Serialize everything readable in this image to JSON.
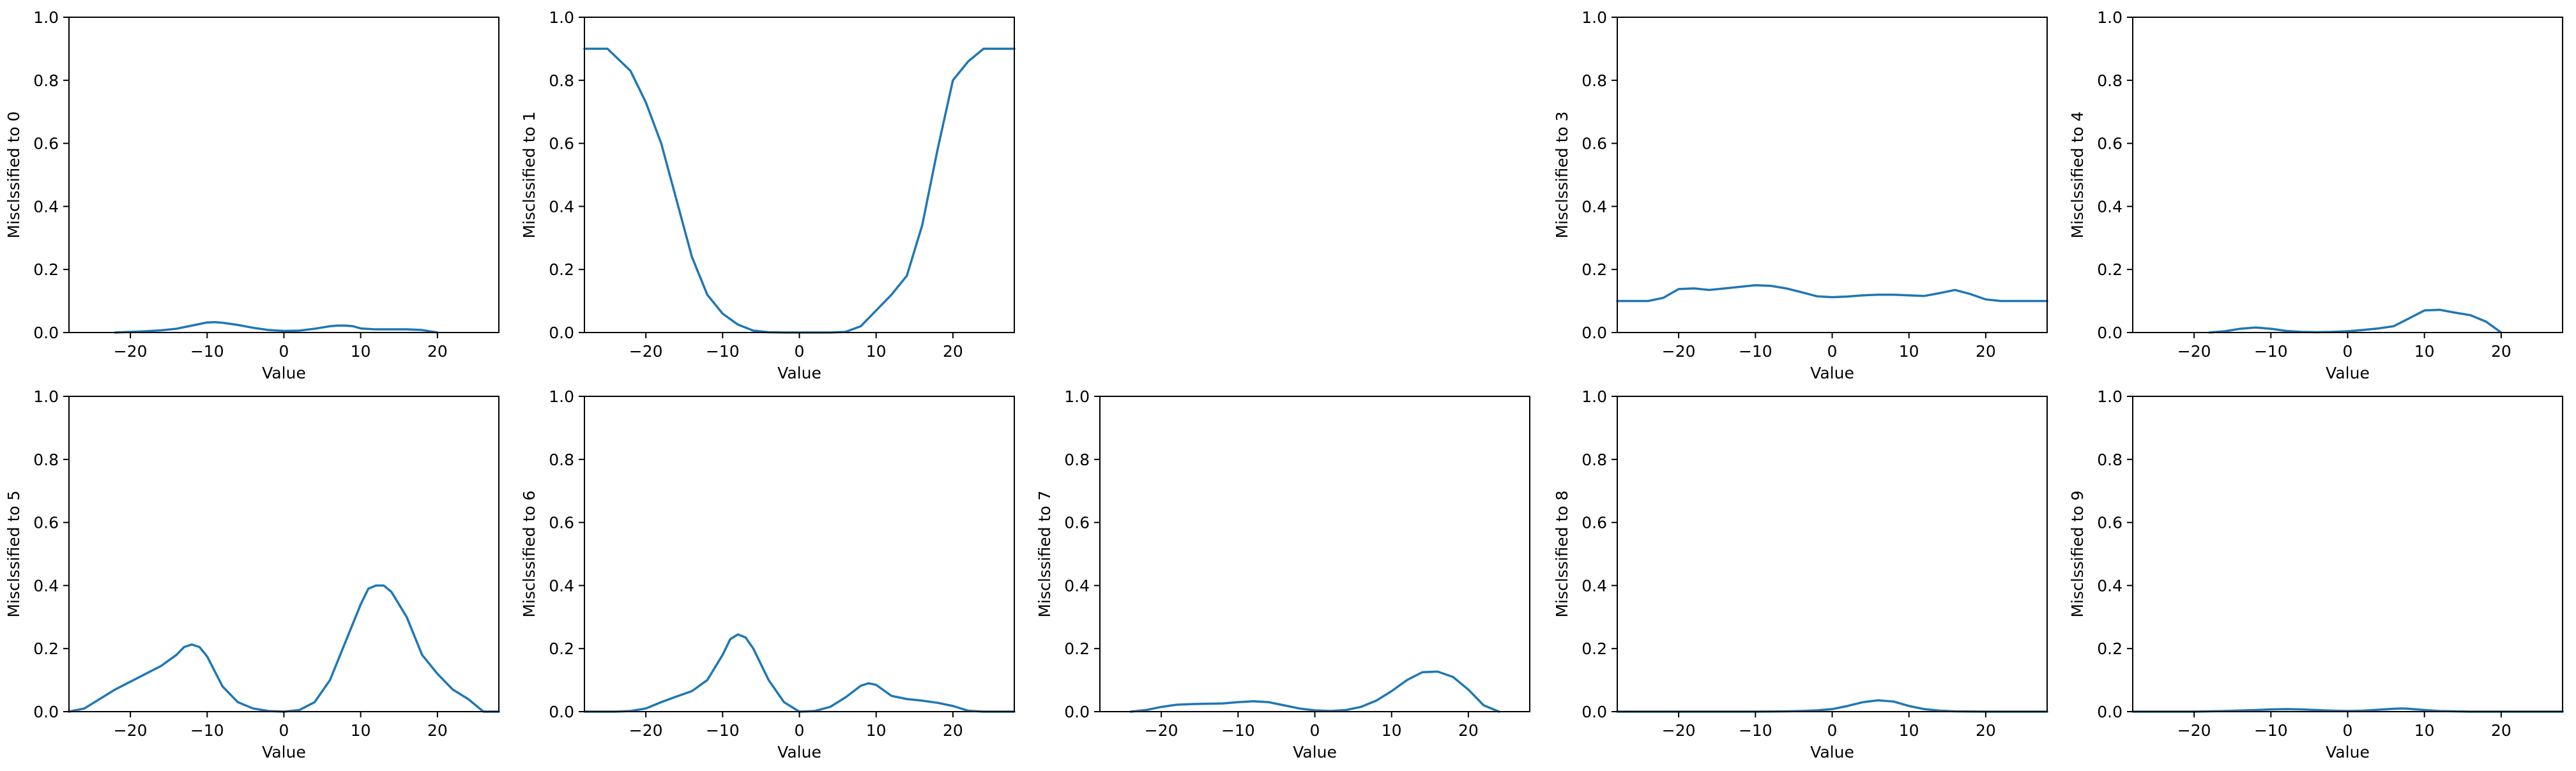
{
  "figure": {
    "line_color": "#1f77b4"
  },
  "chart_data": [
    {
      "type": "line",
      "panel_index": 0,
      "xlabel": "Value",
      "ylabel": "Misclssified to 0",
      "xlim": [
        -28,
        28
      ],
      "ylim": [
        0,
        1
      ],
      "xticks": [
        -20,
        -10,
        0,
        10,
        20
      ],
      "yticks": [
        0.0,
        0.2,
        0.4,
        0.6,
        0.8,
        1.0
      ],
      "x": [
        -22,
        -20,
        -18,
        -16,
        -14,
        -12,
        -10,
        -9,
        -8,
        -6,
        -4,
        -2,
        0,
        2,
        4,
        6,
        7,
        8,
        9,
        10,
        12,
        14,
        16,
        18,
        20
      ],
      "y": [
        0.0,
        0.002,
        0.004,
        0.007,
        0.012,
        0.022,
        0.032,
        0.033,
        0.031,
        0.024,
        0.015,
        0.008,
        0.005,
        0.006,
        0.012,
        0.02,
        0.022,
        0.022,
        0.02,
        0.013,
        0.01,
        0.01,
        0.01,
        0.008,
        0.0
      ]
    },
    {
      "type": "line",
      "panel_index": 1,
      "xlabel": "Value",
      "ylabel": "Misclssified to 1",
      "xlim": [
        -28,
        28
      ],
      "ylim": [
        0,
        1
      ],
      "xticks": [
        -20,
        -10,
        0,
        10,
        20
      ],
      "yticks": [
        0.0,
        0.2,
        0.4,
        0.6,
        0.8,
        1.0
      ],
      "x": [
        -28,
        -25,
        -22,
        -20,
        -18,
        -16,
        -14,
        -12,
        -10,
        -8,
        -6,
        -4,
        -2,
        0,
        2,
        4,
        6,
        8,
        10,
        12,
        14,
        16,
        18,
        20,
        22,
        24,
        26,
        28
      ],
      "y": [
        0.9,
        0.9,
        0.83,
        0.73,
        0.6,
        0.42,
        0.24,
        0.12,
        0.06,
        0.025,
        0.006,
        0.001,
        0.0,
        0.0,
        0.0,
        0.0,
        0.002,
        0.02,
        0.07,
        0.12,
        0.18,
        0.34,
        0.58,
        0.8,
        0.86,
        0.9,
        0.9,
        0.9
      ]
    },
    {
      "type": "empty",
      "panel_index": 2
    },
    {
      "type": "line",
      "panel_index": 3,
      "xlabel": "Value",
      "ylabel": "Misclssified to 3",
      "xlim": [
        -28,
        28
      ],
      "ylim": [
        0,
        1
      ],
      "xticks": [
        -20,
        -10,
        0,
        10,
        20
      ],
      "yticks": [
        0.0,
        0.2,
        0.4,
        0.6,
        0.8,
        1.0
      ],
      "x": [
        -28,
        -24,
        -22,
        -20,
        -18,
        -16,
        -14,
        -12,
        -10,
        -8,
        -6,
        -4,
        -2,
        0,
        2,
        4,
        6,
        8,
        10,
        12,
        14,
        16,
        18,
        20,
        22,
        24,
        26,
        28
      ],
      "y": [
        0.1,
        0.1,
        0.11,
        0.138,
        0.14,
        0.135,
        0.14,
        0.145,
        0.15,
        0.148,
        0.14,
        0.128,
        0.115,
        0.112,
        0.114,
        0.118,
        0.12,
        0.12,
        0.118,
        0.116,
        0.125,
        0.135,
        0.122,
        0.105,
        0.1,
        0.1,
        0.1,
        0.1
      ]
    },
    {
      "type": "line",
      "panel_index": 4,
      "xlabel": "Value",
      "ylabel": "Misclssified to 4",
      "xlim": [
        -28,
        28
      ],
      "ylim": [
        0,
        1
      ],
      "xticks": [
        -20,
        -10,
        0,
        10,
        20
      ],
      "yticks": [
        0.0,
        0.2,
        0.4,
        0.6,
        0.8,
        1.0
      ],
      "x": [
        -18,
        -16,
        -14,
        -12,
        -10,
        -8,
        -6,
        -4,
        -2,
        0,
        2,
        4,
        6,
        8,
        10,
        12,
        14,
        16,
        18,
        20
      ],
      "y": [
        0.0,
        0.004,
        0.012,
        0.016,
        0.012,
        0.005,
        0.002,
        0.001,
        0.002,
        0.004,
        0.008,
        0.013,
        0.02,
        0.045,
        0.07,
        0.072,
        0.063,
        0.055,
        0.035,
        0.0
      ]
    },
    {
      "type": "line",
      "panel_index": 5,
      "xlabel": "Value",
      "ylabel": "Misclssified to 5",
      "xlim": [
        -28,
        28
      ],
      "ylim": [
        0,
        1
      ],
      "xticks": [
        -20,
        -10,
        0,
        10,
        20
      ],
      "yticks": [
        0.0,
        0.2,
        0.4,
        0.6,
        0.8,
        1.0
      ],
      "x": [
        -28,
        -26,
        -24,
        -22,
        -20,
        -18,
        -16,
        -14,
        -13,
        -12,
        -11,
        -10,
        -8,
        -6,
        -4,
        -2,
        0,
        2,
        4,
        6,
        8,
        10,
        11,
        12,
        13,
        14,
        16,
        18,
        20,
        22,
        24,
        26,
        28
      ],
      "y": [
        0.0,
        0.01,
        0.04,
        0.07,
        0.095,
        0.12,
        0.145,
        0.18,
        0.205,
        0.213,
        0.205,
        0.175,
        0.08,
        0.03,
        0.01,
        0.002,
        0.0,
        0.005,
        0.03,
        0.1,
        0.22,
        0.34,
        0.39,
        0.4,
        0.4,
        0.38,
        0.3,
        0.18,
        0.12,
        0.07,
        0.04,
        0.0,
        0.0
      ]
    },
    {
      "type": "line",
      "panel_index": 6,
      "xlabel": "Value",
      "ylabel": "Misclssified to 6",
      "xlim": [
        -28,
        28
      ],
      "ylim": [
        0,
        1
      ],
      "xticks": [
        -20,
        -10,
        0,
        10,
        20
      ],
      "yticks": [
        0.0,
        0.2,
        0.4,
        0.6,
        0.8,
        1.0
      ],
      "x": [
        -28,
        -24,
        -22,
        -20,
        -18,
        -16,
        -14,
        -12,
        -10,
        -9,
        -8,
        -7,
        -6,
        -4,
        -2,
        0,
        2,
        4,
        6,
        8,
        9,
        10,
        12,
        14,
        16,
        18,
        20,
        22,
        24,
        28
      ],
      "y": [
        0.0,
        0.0,
        0.002,
        0.01,
        0.03,
        0.048,
        0.065,
        0.1,
        0.18,
        0.23,
        0.245,
        0.235,
        0.2,
        0.1,
        0.03,
        0.0,
        0.002,
        0.015,
        0.045,
        0.082,
        0.09,
        0.085,
        0.05,
        0.04,
        0.035,
        0.028,
        0.018,
        0.003,
        0.0,
        0.0
      ]
    },
    {
      "type": "line",
      "panel_index": 7,
      "xlabel": "Value",
      "ylabel": "Misclssified to 7",
      "xlim": [
        -28,
        28
      ],
      "ylim": [
        0,
        1
      ],
      "xticks": [
        -20,
        -10,
        0,
        10,
        20
      ],
      "yticks": [
        0.0,
        0.2,
        0.4,
        0.6,
        0.8,
        1.0
      ],
      "x": [
        -24,
        -22,
        -20,
        -18,
        -16,
        -14,
        -12,
        -10,
        -8,
        -6,
        -4,
        -2,
        0,
        2,
        4,
        6,
        8,
        10,
        12,
        14,
        16,
        18,
        20,
        22,
        24
      ],
      "y": [
        0.0,
        0.005,
        0.015,
        0.022,
        0.024,
        0.025,
        0.026,
        0.03,
        0.033,
        0.03,
        0.02,
        0.01,
        0.004,
        0.002,
        0.005,
        0.015,
        0.035,
        0.065,
        0.1,
        0.125,
        0.127,
        0.11,
        0.07,
        0.02,
        0.0
      ]
    },
    {
      "type": "line",
      "panel_index": 8,
      "xlabel": "Value",
      "ylabel": "Misclssified to 8",
      "xlim": [
        -28,
        28
      ],
      "ylim": [
        0,
        1
      ],
      "xticks": [
        -20,
        -10,
        0,
        10,
        20
      ],
      "yticks": [
        0.0,
        0.2,
        0.4,
        0.6,
        0.8,
        1.0
      ],
      "x": [
        -28,
        -20,
        -10,
        -6,
        -4,
        -2,
        0,
        2,
        4,
        6,
        8,
        10,
        12,
        14,
        16,
        20,
        28
      ],
      "y": [
        0.0,
        0.0,
        0.0,
        0.001,
        0.002,
        0.004,
        0.008,
        0.018,
        0.03,
        0.036,
        0.032,
        0.018,
        0.008,
        0.003,
        0.001,
        0.0,
        0.0
      ]
    },
    {
      "type": "line",
      "panel_index": 9,
      "xlabel": "Value",
      "ylabel": "Misclssified to 9",
      "xlim": [
        -28,
        28
      ],
      "ylim": [
        0,
        1
      ],
      "xticks": [
        -20,
        -10,
        0,
        10,
        20
      ],
      "yticks": [
        0.0,
        0.2,
        0.4,
        0.6,
        0.8,
        1.0
      ],
      "x": [
        -28,
        -20,
        -16,
        -12,
        -10,
        -8,
        -6,
        -4,
        -2,
        0,
        2,
        4,
        6,
        7,
        8,
        10,
        12,
        16,
        20,
        28
      ],
      "y": [
        0.0,
        0.0,
        0.002,
        0.005,
        0.007,
        0.008,
        0.007,
        0.005,
        0.003,
        0.002,
        0.003,
        0.006,
        0.009,
        0.01,
        0.009,
        0.005,
        0.002,
        0.0,
        0.0,
        0.0
      ]
    }
  ]
}
